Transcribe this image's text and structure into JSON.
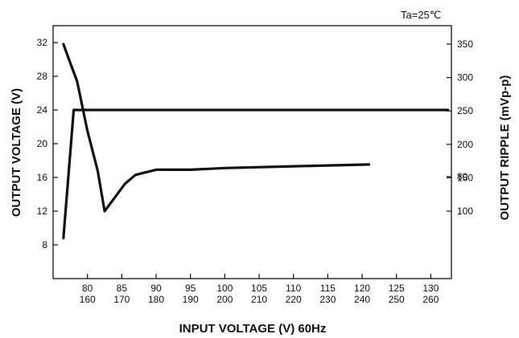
{
  "chart_data": {
    "type": "line",
    "note": "Ta=25℃",
    "xlabel": "INPUT VOLTAGE (V) 60Hz",
    "ylabel_left": "OUTPUT VOLTAGE (V)",
    "ylabel_right": "OUTPUT RIPPLE (mVp-p)",
    "x_ticks_row1": [
      "80",
      "85",
      "90",
      "95",
      "100",
      "105",
      "110",
      "115",
      "120",
      "125",
      "130"
    ],
    "x_ticks_row2": [
      "160",
      "170",
      "180",
      "190",
      "200",
      "210",
      "220",
      "230",
      "240",
      "250",
      "260"
    ],
    "xlim": [
      75,
      133
    ],
    "ylim_left": [
      4,
      34
    ],
    "left_ticks": [
      "8",
      "12",
      "16",
      "20",
      "24",
      "28",
      "32"
    ],
    "right_ticks": [
      "80",
      "100",
      "150",
      "200",
      "250",
      "300",
      "350"
    ],
    "grid": false,
    "series": [
      {
        "axis": "left",
        "x": [
          76.5,
          78,
          132.5
        ],
        "y": [
          8.8,
          24,
          24
        ]
      },
      {
        "axis": "right",
        "x": [
          76.5,
          77.5,
          78.5,
          80,
          81.5,
          82.5,
          84,
          85.5,
          87,
          90,
          95,
          100,
          110,
          121
        ],
        "y": [
          350,
          322,
          294,
          220,
          160,
          100,
          92,
          84,
          79,
          76,
          76,
          75,
          74,
          73
        ]
      }
    ]
  }
}
